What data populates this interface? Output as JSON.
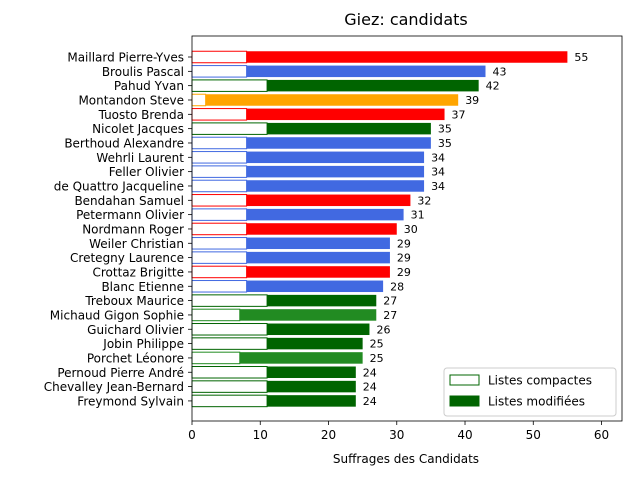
{
  "chart_data": {
    "type": "bar",
    "orientation": "horizontal",
    "title": "Giez: candidats",
    "xlabel": "Suffrages des Candidats",
    "ylabel": "",
    "xlim": [
      0,
      63
    ],
    "xticks": [
      0,
      10,
      20,
      30,
      40,
      50,
      60
    ],
    "grid": false,
    "legend_position": "lower-right",
    "legend": [
      {
        "label": "Listes compactes",
        "style": "outline",
        "color": "#006400"
      },
      {
        "label": "Listes modifiées",
        "style": "filled",
        "color": "#006400"
      }
    ],
    "series": [
      {
        "name": "Listes compactes",
        "values": [
          8,
          8,
          11,
          2,
          8,
          11,
          8,
          8,
          8,
          8,
          8,
          8,
          8,
          8,
          8,
          8,
          8,
          11,
          7,
          11,
          11,
          7,
          11,
          11,
          11
        ]
      },
      {
        "name": "Listes modifiées",
        "values": [
          47,
          35,
          31,
          37,
          29,
          24,
          27,
          26,
          26,
          26,
          24,
          23,
          22,
          21,
          21,
          21,
          20,
          16,
          20,
          15,
          14,
          18,
          13,
          13,
          13
        ]
      }
    ],
    "candidates": [
      {
        "name": "Maillard Pierre-Yves",
        "total": 55,
        "color": "#ff0000"
      },
      {
        "name": "Broulis Pascal",
        "total": 43,
        "color": "#4169e1"
      },
      {
        "name": "Pahud Yvan",
        "total": 42,
        "color": "#006400"
      },
      {
        "name": "Montandon Steve",
        "total": 39,
        "color": "#ffa500"
      },
      {
        "name": "Tuosto Brenda",
        "total": 37,
        "color": "#ff0000"
      },
      {
        "name": "Nicolet Jacques",
        "total": 35,
        "color": "#006400"
      },
      {
        "name": "Berthoud Alexandre",
        "total": 35,
        "color": "#4169e1"
      },
      {
        "name": "Wehrli Laurent",
        "total": 34,
        "color": "#4169e1"
      },
      {
        "name": "Feller Olivier",
        "total": 34,
        "color": "#4169e1"
      },
      {
        "name": "de Quattro Jacqueline",
        "total": 34,
        "color": "#4169e1"
      },
      {
        "name": "Bendahan Samuel",
        "total": 32,
        "color": "#ff0000"
      },
      {
        "name": "Petermann Olivier",
        "total": 31,
        "color": "#4169e1"
      },
      {
        "name": "Nordmann Roger",
        "total": 30,
        "color": "#ff0000"
      },
      {
        "name": "Weiler Christian",
        "total": 29,
        "color": "#4169e1"
      },
      {
        "name": "Cretegny Laurence",
        "total": 29,
        "color": "#4169e1"
      },
      {
        "name": "Crottaz Brigitte",
        "total": 29,
        "color": "#ff0000"
      },
      {
        "name": "Blanc Etienne",
        "total": 28,
        "color": "#4169e1"
      },
      {
        "name": "Treboux Maurice",
        "total": 27,
        "color": "#006400"
      },
      {
        "name": "Michaud Gigon Sophie",
        "total": 27,
        "color": "#228b22"
      },
      {
        "name": "Guichard Olivier",
        "total": 26,
        "color": "#006400"
      },
      {
        "name": "Jobin Philippe",
        "total": 25,
        "color": "#006400"
      },
      {
        "name": "Porchet Léonore",
        "total": 25,
        "color": "#228b22"
      },
      {
        "name": "Pernoud Pierre André",
        "total": 24,
        "color": "#006400"
      },
      {
        "name": "Chevalley Jean-Bernard",
        "total": 24,
        "color": "#006400"
      },
      {
        "name": "Freymond Sylvain",
        "total": 24,
        "color": "#006400"
      }
    ]
  }
}
